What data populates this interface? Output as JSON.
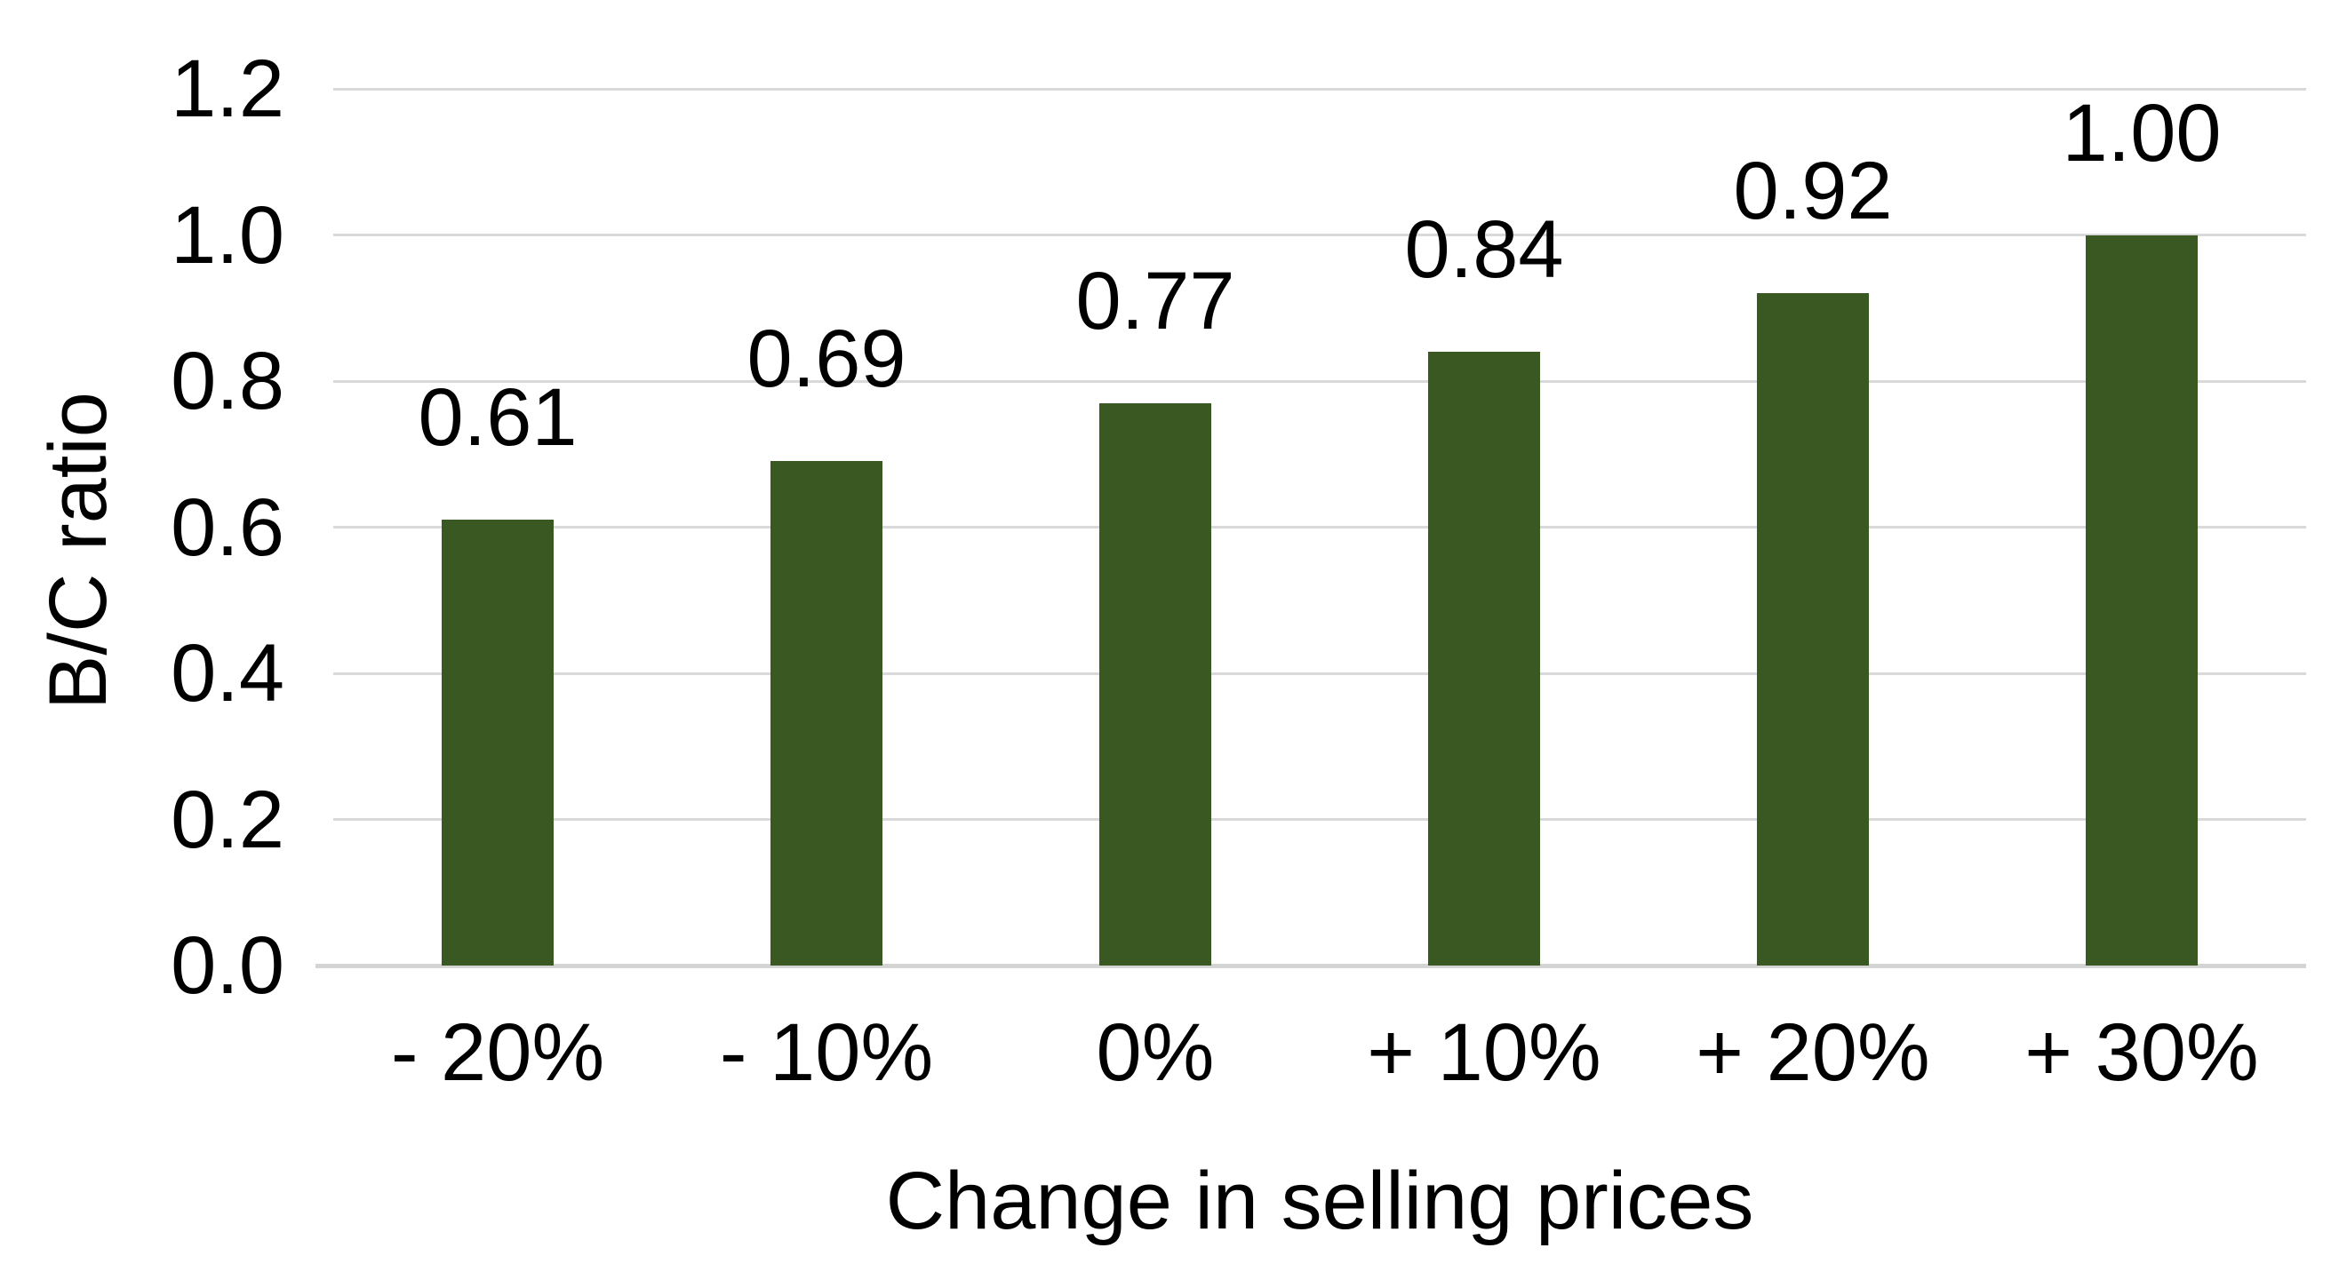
{
  "chart_data": {
    "type": "bar",
    "title": "",
    "xlabel": "Change in selling prices",
    "ylabel": "B/C ratio",
    "categories": [
      "- 20%",
      "- 10%",
      "0%",
      "+ 10%",
      "+ 20%",
      "+ 30%"
    ],
    "values": [
      0.61,
      0.69,
      0.77,
      0.84,
      0.92,
      1.0
    ],
    "value_labels": [
      "0.61",
      "0.69",
      "0.77",
      "0.84",
      "0.92",
      "1.00"
    ],
    "series": [
      {
        "name": "B/C ratio",
        "values": [
          0.61,
          0.69,
          0.77,
          0.84,
          0.92,
          1.0
        ]
      }
    ],
    "ylim": [
      0,
      1.2
    ],
    "ytick_step": 0.2,
    "ytick_labels": [
      "0.0",
      "0.2",
      "0.4",
      "0.6",
      "0.8",
      "1.0",
      "1.2"
    ],
    "grid": "horizontal",
    "legend": "none",
    "colors": {
      "bar": "#3a5822",
      "gridline": "#d9d9d9",
      "axis_line": "#d4d4d4",
      "text": "#000000",
      "background": "#ffffff"
    }
  }
}
